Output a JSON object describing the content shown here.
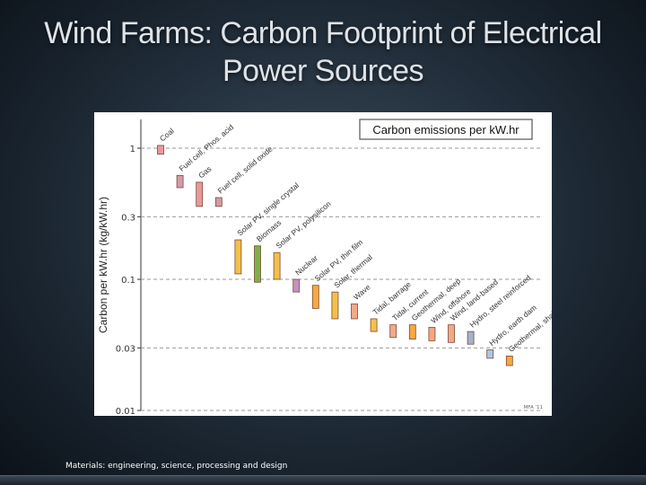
{
  "slide": {
    "title_line1": "Wind Farms: Carbon Footprint of Electrical",
    "title_line2": "Power Sources",
    "footer": "Materials: engineering, science, processing and design"
  },
  "chart_data": {
    "type": "bar",
    "title": "Carbon emissions per kW.hr",
    "ylabel": "Carbon per kW.hr (kg/kW.hr)",
    "yscale": "log",
    "ylim": [
      0.01,
      1.5
    ],
    "yticks": [
      0.01,
      0.03,
      0.1,
      0.3,
      1
    ],
    "ytick_labels": [
      "0.01",
      "0.03",
      "0.1",
      "0.3",
      "1"
    ],
    "grid": true,
    "credit": "MFA '11",
    "series": [
      {
        "label": "Coal",
        "low": 0.9,
        "high": 1.05,
        "color": "#e8989a"
      },
      {
        "label": "Fuel cell, Phos. acid",
        "low": 0.5,
        "high": 0.62,
        "color": "#d49aa6"
      },
      {
        "label": "Gas",
        "low": 0.36,
        "high": 0.55,
        "color": "#e8989a"
      },
      {
        "label": "Fuel cell, solid oxide",
        "low": 0.36,
        "high": 0.42,
        "color": "#d49aa6"
      },
      {
        "label": "Solar PV, single crystal",
        "low": 0.11,
        "high": 0.2,
        "color": "#f4c04a"
      },
      {
        "label": "Biomass",
        "low": 0.095,
        "high": 0.18,
        "color": "#7db048"
      },
      {
        "label": "Solar PV, polysilicon",
        "low": 0.1,
        "high": 0.16,
        "color": "#f4c04a"
      },
      {
        "label": "Nuclear",
        "low": 0.08,
        "high": 0.1,
        "color": "#c592c4"
      },
      {
        "label": "Solar PV, thin film",
        "low": 0.06,
        "high": 0.09,
        "color": "#f7a83e"
      },
      {
        "label": "Solar, thermal",
        "low": 0.05,
        "high": 0.08,
        "color": "#f4c04a"
      },
      {
        "label": "Wave",
        "low": 0.05,
        "high": 0.065,
        "color": "#f2a98a"
      },
      {
        "label": "Tidal, barrage",
        "low": 0.04,
        "high": 0.05,
        "color": "#f4c04a"
      },
      {
        "label": "Tidal, current",
        "low": 0.036,
        "high": 0.045,
        "color": "#f2a98a"
      },
      {
        "label": "Geothermal, deep",
        "low": 0.035,
        "high": 0.045,
        "color": "#f7a83e"
      },
      {
        "label": "Wind, offshore",
        "low": 0.034,
        "high": 0.043,
        "color": "#f4a882"
      },
      {
        "label": "Wind, land-based",
        "low": 0.033,
        "high": 0.045,
        "color": "#f4a882"
      },
      {
        "label": "Hydro, steel reinforced",
        "low": 0.032,
        "high": 0.04,
        "color": "#9fb4cc"
      },
      {
        "label": "Hydro, earth dam",
        "low": 0.025,
        "high": 0.029,
        "color": "#a9c9e4"
      },
      {
        "label": "Geothermal, shallow",
        "low": 0.022,
        "high": 0.026,
        "color": "#f7a83e"
      }
    ]
  }
}
